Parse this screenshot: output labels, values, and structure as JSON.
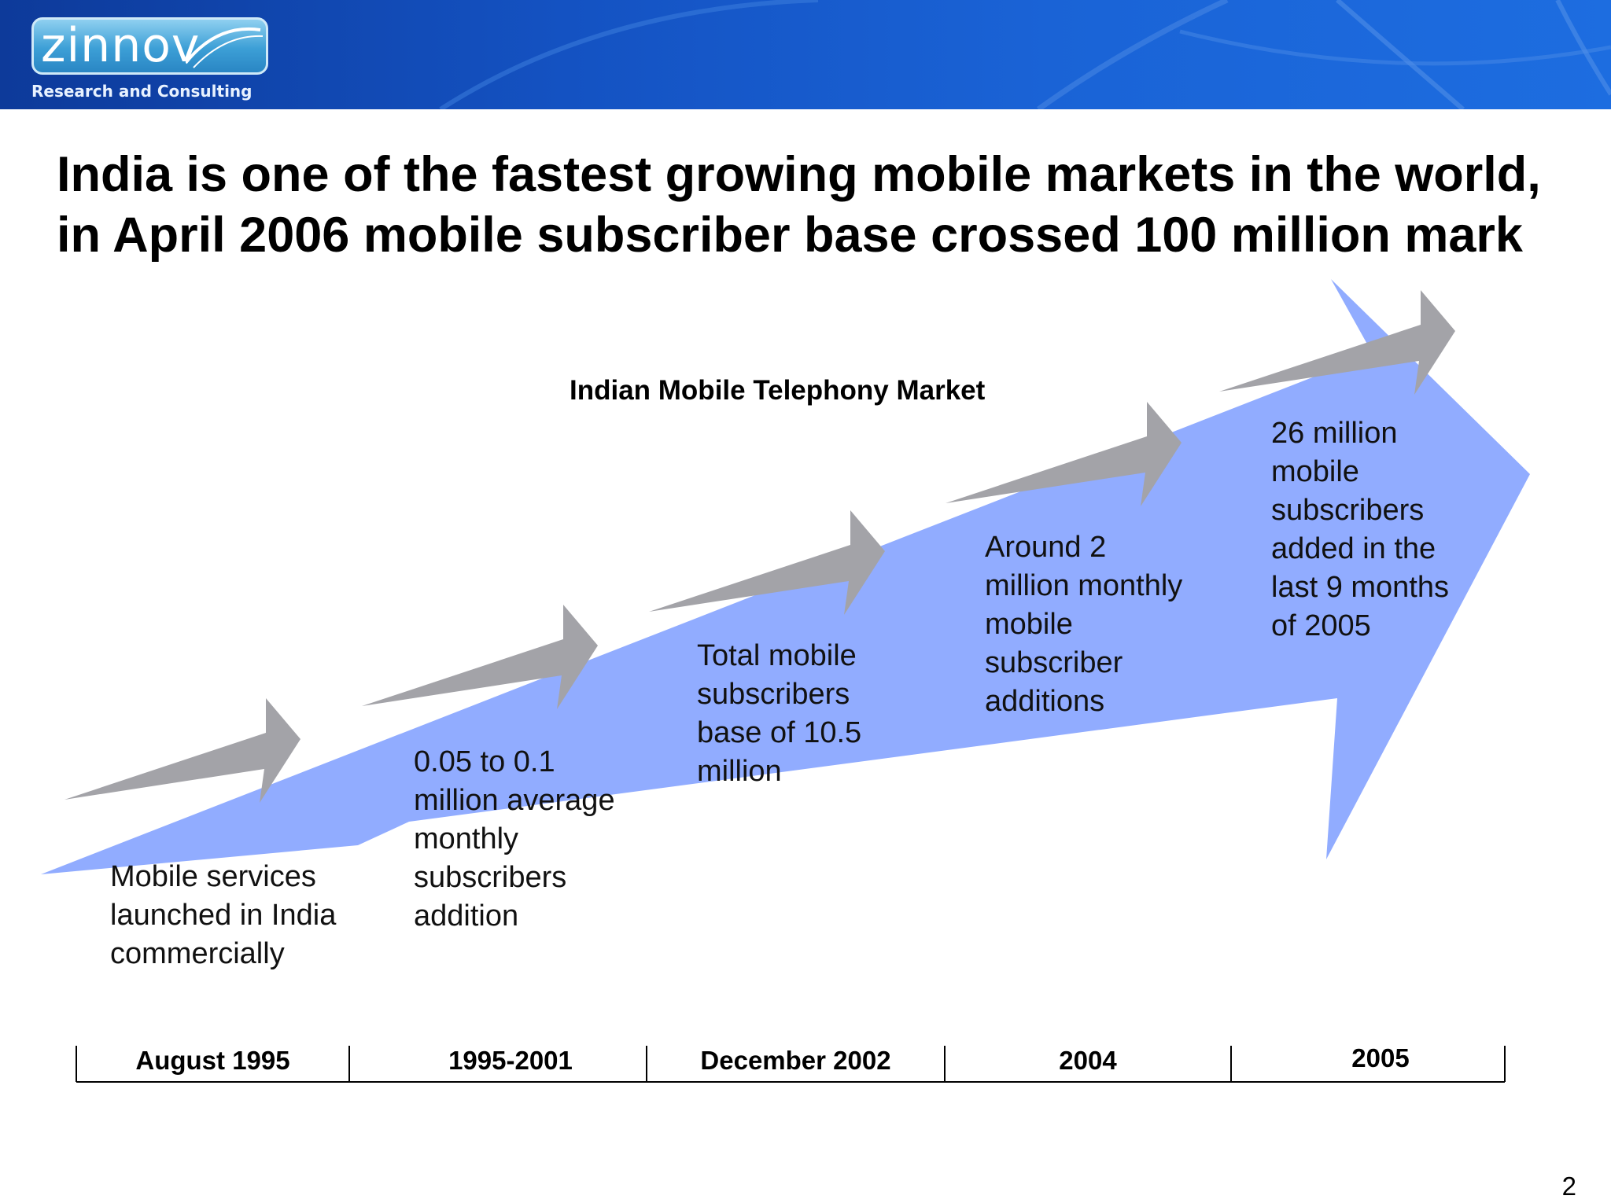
{
  "header": {
    "logo_text": "zinnov",
    "tagline": "Research and Consulting"
  },
  "headline": {
    "line1": "India is one of the fastest growing mobile markets in the world,",
    "line2": "in April 2006 mobile subscriber base crossed 100 million mark"
  },
  "diagram": {
    "title": "Indian Mobile Telephony Market",
    "steps": [
      {
        "period": "August 1995",
        "lines": [
          "Mobile services",
          "launched in India",
          "commercially"
        ]
      },
      {
        "period": "1995-2001",
        "lines": [
          "0.05 to 0.1",
          "million average",
          "monthly",
          "subscribers",
          "addition"
        ]
      },
      {
        "period": "December 2002",
        "lines": [
          "Total mobile",
          "subscribers",
          "base of 10.5",
          "million"
        ]
      },
      {
        "period": "2004",
        "lines": [
          "Around 2",
          "million monthly",
          "mobile",
          "subscriber",
          "additions"
        ]
      },
      {
        "period": "2005",
        "lines": [
          "26 million",
          "mobile",
          "subscribers",
          "added in the",
          "last 9 months",
          "of 2005"
        ]
      }
    ]
  },
  "page_number": "2",
  "colors": {
    "banner": "#1452c2",
    "big_arrow": "#91acff",
    "small_arrows": "#a3a3a8",
    "text": "#000000"
  }
}
